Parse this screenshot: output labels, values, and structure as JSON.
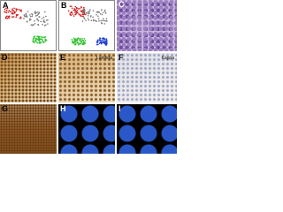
{
  "figure": {
    "panels": [
      {
        "letter": "A"
      },
      {
        "letter": "B"
      },
      {
        "letter": "C"
      },
      {
        "letter": "D"
      },
      {
        "letter": "E",
        "label": "Lambda"
      },
      {
        "letter": "F",
        "label": "Kappa"
      },
      {
        "letter": "G"
      },
      {
        "letter": "H"
      },
      {
        "letter": "I"
      }
    ]
  }
}
